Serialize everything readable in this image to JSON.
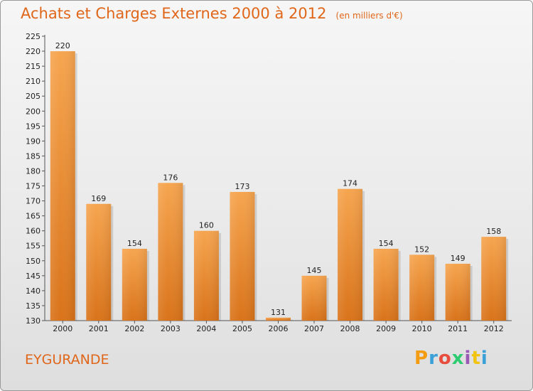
{
  "header": {
    "title": "Achats et Charges Externes 2000 à 2012",
    "unit": "(en milliers d'€)"
  },
  "footer": {
    "commune": "EYGURANDE",
    "logo": "Proxiti",
    "logo_colors": [
      "#f39c12",
      "#3aa0d8",
      "#e74c3c",
      "#2ecc71",
      "#9b59b6",
      "#f1c40f",
      "#3aa0d8"
    ]
  },
  "colors": {
    "bar_light": "#f6a54f",
    "bar_dark": "#d9731a",
    "title": "#e0661a"
  },
  "chart_data": {
    "type": "bar",
    "title": "Achats et Charges Externes 2000 à 2012",
    "subtitle": "(en milliers d'€)",
    "categories": [
      "2000",
      "2001",
      "2002",
      "2003",
      "2004",
      "2005",
      "2006",
      "2007",
      "2008",
      "2009",
      "2010",
      "2011",
      "2012"
    ],
    "values": [
      220,
      169,
      154,
      176,
      160,
      173,
      131,
      145,
      174,
      154,
      152,
      149,
      158
    ],
    "ylim": [
      130,
      225
    ],
    "ytick_step": 5,
    "grid": false,
    "data_labels": true
  }
}
